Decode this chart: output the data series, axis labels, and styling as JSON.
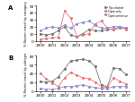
{
  "title_A": "A",
  "title_B": "B",
  "ylabel_A": "% Recent travel by category",
  "ylabel_B": "% Recent travel by subtype",
  "x_labels": [
    "2000",
    "2001",
    "2002",
    "2003",
    "2004",
    "2005",
    "2006",
    "2007"
  ],
  "x_values": [
    2000,
    2000.5,
    2001,
    2001.5,
    2002,
    2002.5,
    2003,
    2003.5,
    2004,
    2004.5,
    2005,
    2005.5,
    2006,
    2006.5,
    2007
  ],
  "A_trip": [
    10,
    8,
    10,
    14,
    20,
    8,
    6,
    10,
    16,
    14,
    14,
    16,
    16,
    18,
    18
  ],
  "A_cipro_only": [
    2,
    3,
    4,
    5,
    42,
    32,
    6,
    8,
    10,
    24,
    28,
    18,
    16,
    20,
    16
  ],
  "A_cipro_sens": [
    14,
    18,
    20,
    18,
    22,
    18,
    24,
    26,
    28,
    22,
    18,
    18,
    20,
    20,
    18
  ],
  "B_trip": [
    22,
    20,
    22,
    32,
    50,
    68,
    70,
    72,
    68,
    56,
    14,
    10,
    52,
    50,
    38
  ],
  "B_cipro_only": [
    40,
    28,
    18,
    10,
    30,
    42,
    36,
    30,
    28,
    20,
    10,
    8,
    30,
    22,
    16
  ],
  "B_cipro_sens": [
    6,
    4,
    4,
    6,
    10,
    10,
    12,
    14,
    10,
    8,
    6,
    6,
    10,
    10,
    10
  ],
  "color_trip": "#777777",
  "color_cipro_only": "#e87878",
  "color_cipro_sens": "#9090cc",
  "legend_trip": "Trip related",
  "legend_cipro_only": "Cipro only",
  "legend_cipro_sens": "Cipro sensitive",
  "x_tick_positions": [
    2000,
    2001,
    2002,
    2003,
    2004,
    2005,
    2006,
    2007
  ],
  "ylim_A": [
    0,
    50
  ],
  "ylim_B": [
    0,
    80
  ],
  "yticks_A": [
    0,
    10,
    20,
    30,
    40,
    50
  ],
  "yticks_B": [
    0,
    20,
    40,
    60,
    80
  ],
  "background": "#ffffff"
}
